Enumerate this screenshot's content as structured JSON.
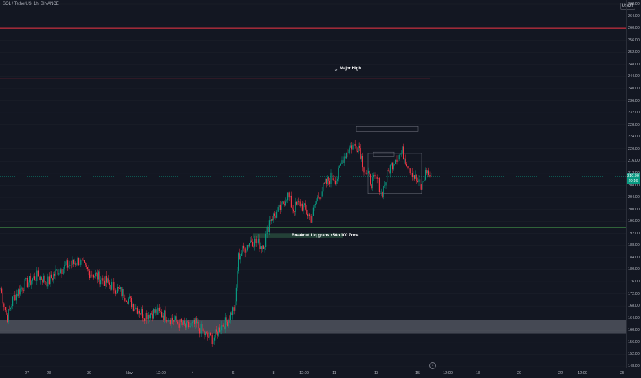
{
  "chart_data": {
    "type": "candlestick",
    "title": "SOL / TetherUS, 1h, BINANCE",
    "currency": "USDT",
    "ylim": [
      148,
      268
    ],
    "y_ticks": [
      "268.00",
      "264.00",
      "260.00",
      "256.00",
      "252.00",
      "248.00",
      "244.00",
      "240.00",
      "236.00",
      "232.00",
      "228.00",
      "224.00",
      "220.00",
      "216.00",
      "212.00",
      "208.00",
      "204.00",
      "200.00",
      "196.00",
      "192.00",
      "188.00",
      "184.00",
      "180.00",
      "176.00",
      "172.00",
      "168.00",
      "164.00",
      "160.00",
      "156.00",
      "152.00",
      "148.00"
    ],
    "x_ticks": [
      "27",
      "28",
      "30",
      "Nov",
      "12:00",
      "4",
      "6",
      "8",
      "12:00",
      "11",
      "13",
      "15",
      "12:00",
      "18",
      "20",
      "22",
      "12:00",
      "25"
    ],
    "last_price": "210.90",
    "countdown": "20:16",
    "horizontal_levels": [
      {
        "price": 260.0,
        "color": "#f23645"
      },
      {
        "price": 243.5,
        "color": "#f23645"
      },
      {
        "price": 194.0,
        "color": "#4caf50"
      }
    ],
    "zones": [
      {
        "from": 158.8,
        "to": 163.4,
        "color": "#787b86"
      }
    ],
    "annotations": [
      {
        "text": "Major High"
      },
      {
        "text": "Breakout Liq grabs x50/x100 Zone"
      }
    ],
    "up_color": "#089981",
    "down_color": "#f23645",
    "path_keypoints": [
      [
        0,
        175
      ],
      [
        10,
        164
      ],
      [
        20,
        171
      ],
      [
        35,
        175
      ],
      [
        55,
        178
      ],
      [
        70,
        176
      ],
      [
        85,
        180
      ],
      [
        105,
        182
      ],
      [
        115,
        183
      ],
      [
        125,
        180
      ],
      [
        140,
        178
      ],
      [
        160,
        175
      ],
      [
        180,
        172
      ],
      [
        195,
        168
      ],
      [
        210,
        165
      ],
      [
        225,
        166
      ],
      [
        240,
        165
      ],
      [
        255,
        163
      ],
      [
        270,
        161
      ],
      [
        285,
        162
      ],
      [
        300,
        158
      ],
      [
        310,
        157
      ],
      [
        320,
        161
      ],
      [
        330,
        163
      ],
      [
        342,
        168
      ],
      [
        346,
        184
      ],
      [
        352,
        186
      ],
      [
        365,
        190
      ],
      [
        380,
        188
      ],
      [
        385,
        189
      ],
      [
        392,
        197
      ],
      [
        400,
        198
      ],
      [
        410,
        201
      ],
      [
        418,
        205
      ],
      [
        426,
        200
      ],
      [
        436,
        202
      ],
      [
        446,
        199
      ],
      [
        452,
        197
      ],
      [
        462,
        204
      ],
      [
        472,
        208
      ],
      [
        482,
        211
      ],
      [
        490,
        210
      ],
      [
        498,
        217
      ],
      [
        510,
        221
      ],
      [
        522,
        221
      ],
      [
        530,
        213
      ],
      [
        540,
        209
      ],
      [
        548,
        210
      ],
      [
        555,
        205
      ],
      [
        565,
        213
      ],
      [
        575,
        217
      ],
      [
        585,
        219
      ],
      [
        595,
        214
      ],
      [
        605,
        210
      ],
      [
        612,
        207
      ],
      [
        620,
        213
      ],
      [
        628,
        210
      ]
    ]
  }
}
